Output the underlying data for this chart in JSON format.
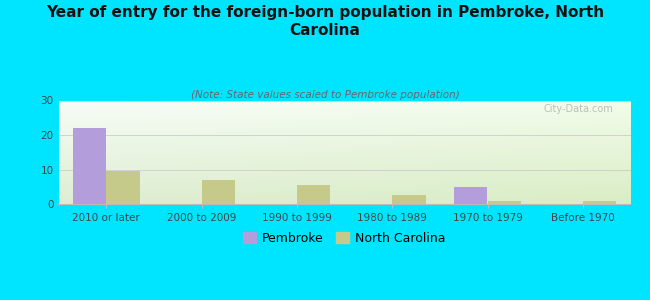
{
  "title": "Year of entry for the foreign-born population in Pembroke, North\nCarolina",
  "subtitle": "(Note: State values scaled to Pembroke population)",
  "categories": [
    "2010 or later",
    "2000 to 2009",
    "1990 to 1999",
    "1980 to 1989",
    "1970 to 1979",
    "Before 1970"
  ],
  "pembroke_values": [
    22,
    0,
    0,
    0,
    5,
    0
  ],
  "nc_values": [
    9.5,
    7,
    5.5,
    2.5,
    1,
    1
  ],
  "pembroke_color": "#b39ddb",
  "nc_color": "#c5c98a",
  "background_color": "#00e5ff",
  "ylim": [
    0,
    30
  ],
  "yticks": [
    0,
    10,
    20,
    30
  ],
  "bar_width": 0.35,
  "watermark": "City-Data.com",
  "title_fontsize": 11,
  "subtitle_fontsize": 7.5,
  "tick_fontsize": 7.5,
  "legend_fontsize": 9
}
